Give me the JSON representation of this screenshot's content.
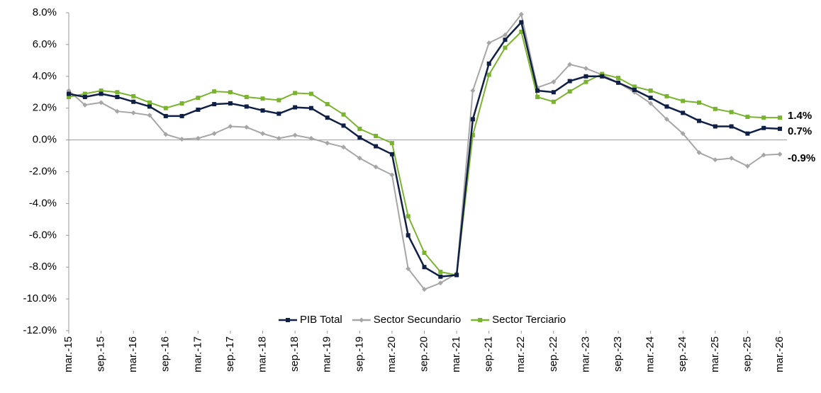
{
  "chart_data": {
    "type": "line",
    "categories": [
      "mar.-15",
      null,
      "sep.-15",
      null,
      "mar.-16",
      null,
      "sep.-16",
      null,
      "mar.-17",
      null,
      "sep.-17",
      null,
      "mar.-18",
      null,
      "sep.-18",
      null,
      "mar.-19",
      null,
      "sep.-19",
      null,
      "mar.-20",
      null,
      "sep.-20",
      null,
      "mar.-21",
      null,
      "sep.-21",
      null,
      "mar.-22",
      null,
      "sep.-22",
      null,
      "mar.-23",
      null,
      "sep.-23",
      null,
      "mar.-24",
      null,
      "sep.-24",
      null,
      "mar.-25",
      null,
      "sep.-25",
      null,
      "mar.-26"
    ],
    "series": [
      {
        "name": "PIB Total",
        "color": "#0f1f45",
        "marker": "square",
        "label": "0.7%",
        "values": [
          2.9,
          2.7,
          2.9,
          2.7,
          2.4,
          2.1,
          1.5,
          1.5,
          1.9,
          2.25,
          2.3,
          2.1,
          1.85,
          1.65,
          2.05,
          2.0,
          1.4,
          0.9,
          0.15,
          -0.4,
          -0.9,
          -6.0,
          -8.0,
          -8.6,
          -8.5,
          1.3,
          4.8,
          6.3,
          7.4,
          3.1,
          3.0,
          3.7,
          4.0,
          4.0,
          3.6,
          3.15,
          2.65,
          2.1,
          1.7,
          1.2,
          0.85,
          0.85,
          0.4,
          0.75,
          0.7
        ]
      },
      {
        "name": "Sector Secundario",
        "color": "#a6a6a6",
        "marker": "diamond",
        "label": "-0.9%",
        "label_color": "#e00000",
        "values": [
          3.1,
          2.2,
          2.35,
          1.8,
          1.7,
          1.55,
          0.35,
          0.05,
          0.1,
          0.4,
          0.85,
          0.8,
          0.4,
          0.1,
          0.3,
          0.1,
          -0.2,
          -0.45,
          -1.15,
          -1.7,
          -2.2,
          -8.1,
          -9.4,
          -9.0,
          -8.4,
          3.1,
          6.1,
          6.6,
          7.9,
          3.3,
          3.65,
          4.75,
          4.5,
          4.1,
          3.6,
          3.0,
          2.3,
          1.3,
          0.4,
          -0.8,
          -1.25,
          -1.15,
          -1.65,
          -0.95,
          -0.9
        ]
      },
      {
        "name": "Sector Terciario",
        "color": "#7ab32e",
        "marker": "square",
        "label": "1.4%",
        "values": [
          2.7,
          2.9,
          3.1,
          3.0,
          2.75,
          2.35,
          2.0,
          2.3,
          2.65,
          3.05,
          3.0,
          2.7,
          2.6,
          2.5,
          2.95,
          2.9,
          2.25,
          1.6,
          0.7,
          0.25,
          -0.2,
          -4.8,
          -7.1,
          -8.3,
          -8.5,
          0.3,
          4.1,
          5.8,
          6.8,
          2.7,
          2.4,
          3.05,
          3.65,
          4.15,
          3.9,
          3.35,
          3.1,
          2.75,
          2.45,
          2.35,
          1.95,
          1.75,
          1.45,
          1.4,
          1.4
        ]
      }
    ],
    "ylim": [
      -12,
      8
    ],
    "yticks": [
      {
        "value": -12,
        "label": "-12.0%"
      },
      {
        "value": -10,
        "label": "-10.0%"
      },
      {
        "value": -8,
        "label": "-8.0%"
      },
      {
        "value": -6,
        "label": "-6.0%"
      },
      {
        "value": -4,
        "label": "-4.0%"
      },
      {
        "value": -2,
        "label": "-2.0%"
      },
      {
        "value": 0,
        "label": "0.0%"
      },
      {
        "value": 2,
        "label": "2.0%"
      },
      {
        "value": 4,
        "label": "4.0%"
      },
      {
        "value": 6,
        "label": "6.0%"
      },
      {
        "value": 8,
        "label": "8.0%"
      }
    ],
    "negative_tick_color": "#e00000",
    "legend": "bottom",
    "grid": false
  }
}
